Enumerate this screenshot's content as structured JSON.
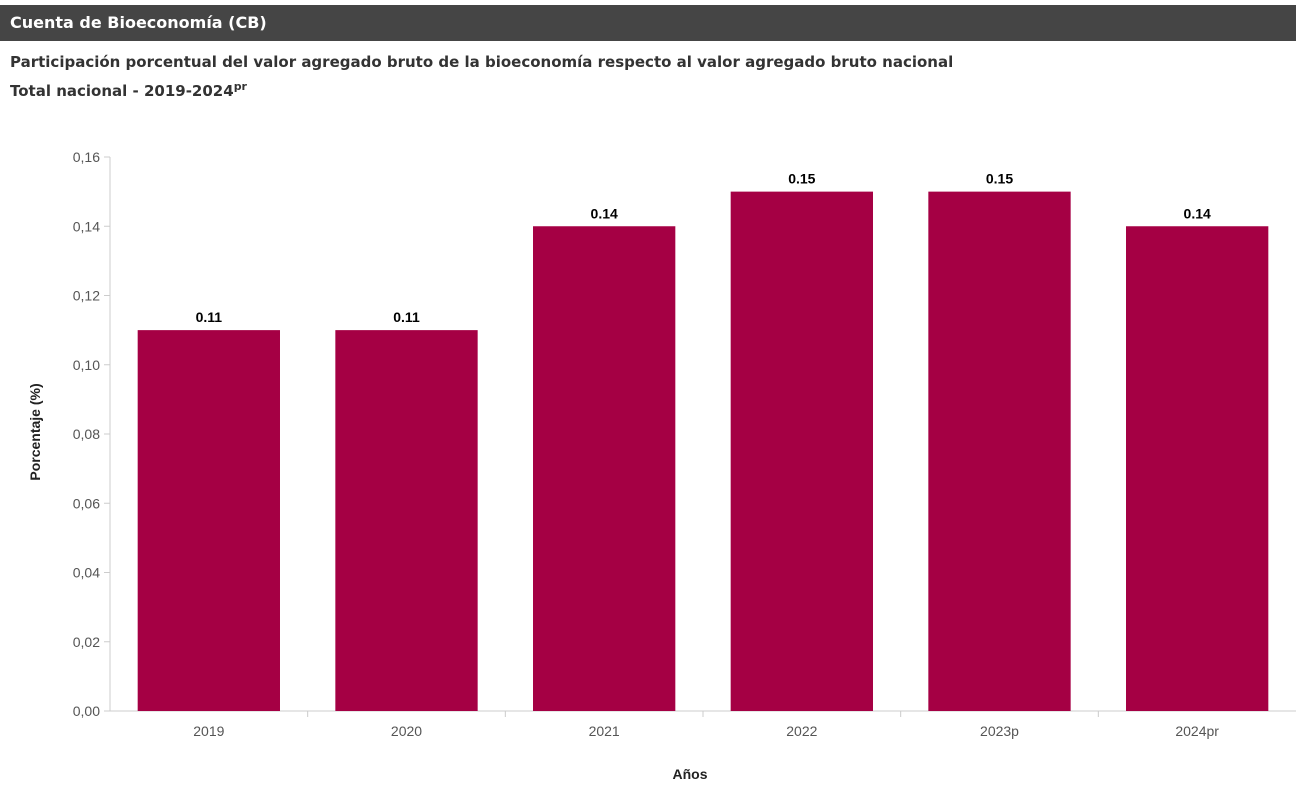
{
  "header": {
    "title": "Cuenta de Bioeconomía (CB)"
  },
  "subtitle": {
    "line1": "Participación porcentual del valor agregado bruto de la bioeconomía respecto al valor agregado bruto nacional",
    "line2": "Total nacional - 2019-2024",
    "line2_superscript": "pr"
  },
  "colors": {
    "bar": "#A50044",
    "header_bg": "#454545",
    "axis": "#cccccc",
    "tick_text": "#555555"
  },
  "chart_data": {
    "type": "bar",
    "categories": [
      "2019",
      "2020",
      "2021",
      "2022",
      "2023p",
      "2024pr"
    ],
    "values": [
      0.11,
      0.11,
      0.14,
      0.15,
      0.15,
      0.14
    ],
    "data_labels": [
      "0.11",
      "0.11",
      "0.14",
      "0.15",
      "0.15",
      "0.14"
    ],
    "ylabel": "Porcentaje (%)",
    "xlabel": "Años",
    "ylim": [
      0,
      0.16
    ],
    "yticks": [
      0,
      0.02,
      0.04,
      0.06,
      0.08,
      0.1,
      0.12,
      0.14,
      0.16
    ],
    "ytick_labels": [
      "0,00",
      "0,02",
      "0,04",
      "0,06",
      "0,08",
      "0,10",
      "0,12",
      "0,14",
      "0,16"
    ],
    "grid": false,
    "legend": "none"
  }
}
